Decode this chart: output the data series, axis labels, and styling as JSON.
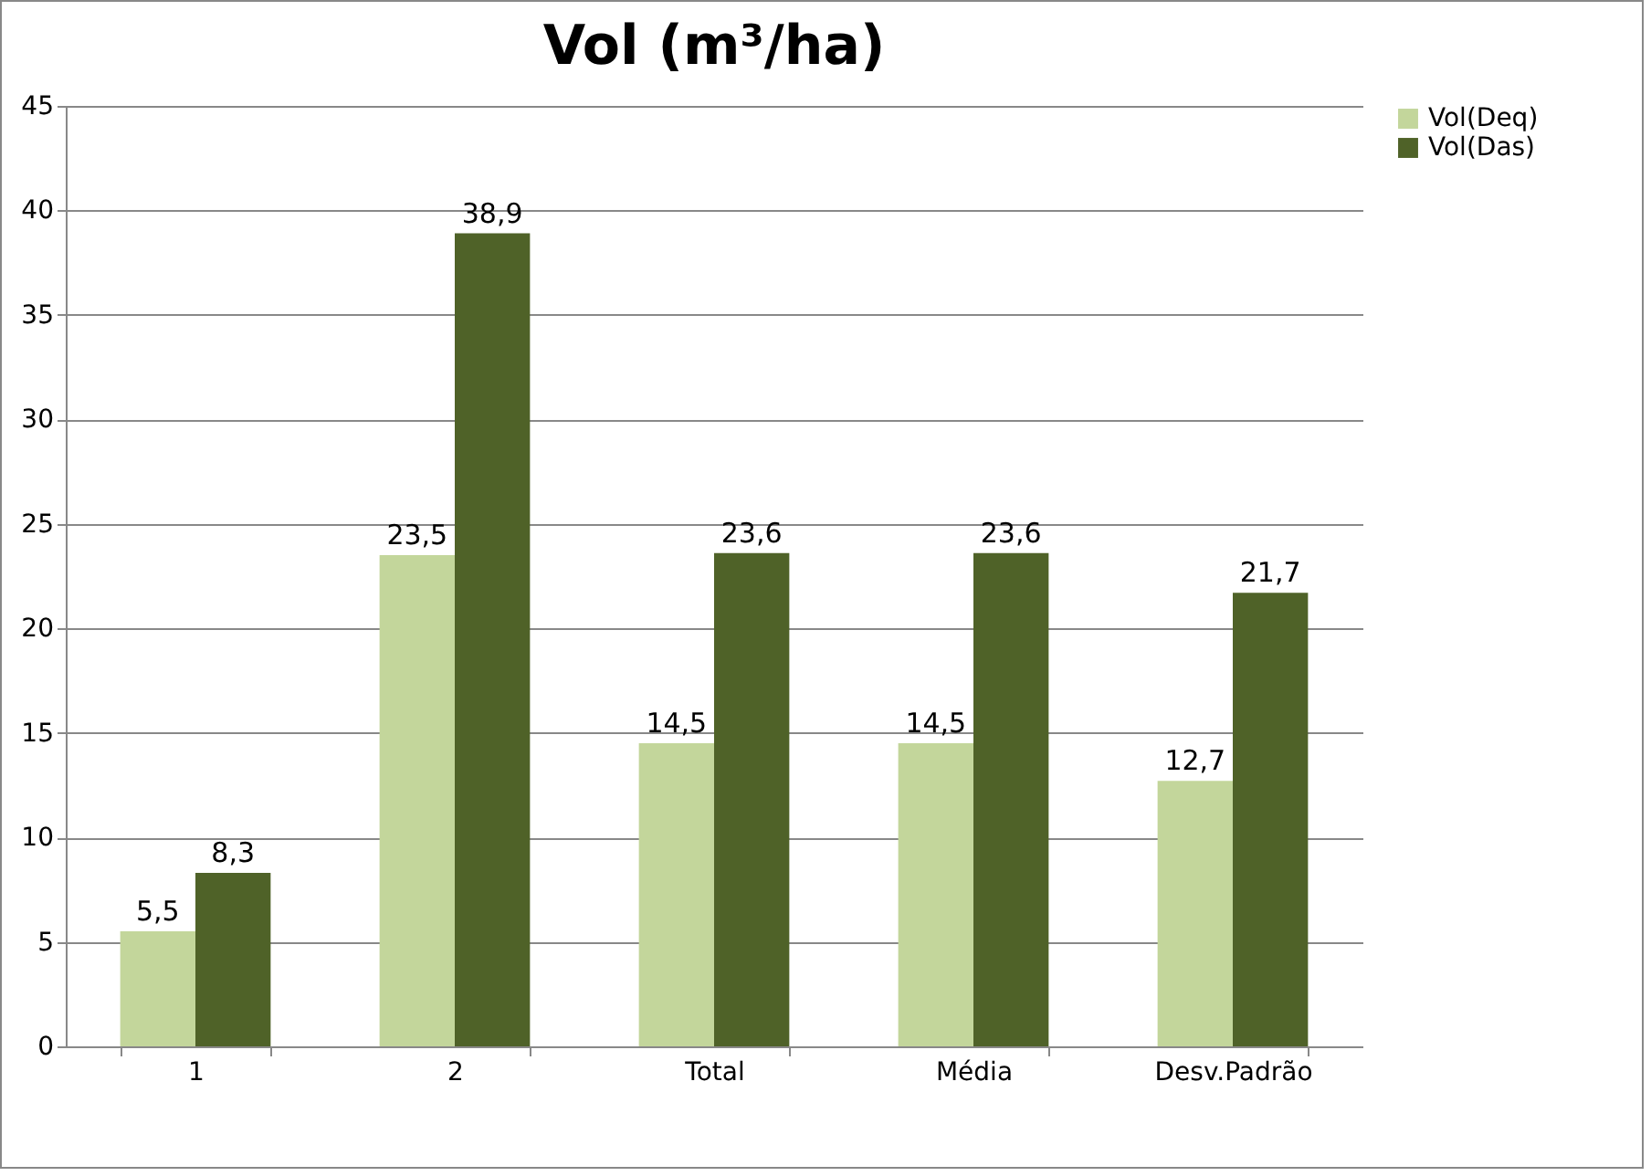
{
  "chart_data": {
    "type": "bar",
    "title": "Vol (m³/ha)",
    "categories": [
      "1",
      "2",
      "Total",
      "Média",
      "Desv.Padrão"
    ],
    "series": [
      {
        "name": "Vol(Deq)",
        "color": "#c3d69b",
        "values": [
          5.5,
          23.5,
          14.5,
          14.5,
          12.7
        ],
        "value_labels": [
          "5,5",
          "23,5",
          "14,5",
          "14,5",
          "12,7"
        ]
      },
      {
        "name": "Vol(Das)",
        "color": "#4f6228",
        "values": [
          8.3,
          38.9,
          23.6,
          23.6,
          21.7
        ],
        "value_labels": [
          "8,3",
          "38,9",
          "23,6",
          "23,6",
          "21,7"
        ]
      }
    ],
    "ylim": [
      0,
      45
    ],
    "yticks": [
      0,
      5,
      10,
      15,
      20,
      25,
      30,
      35,
      40,
      45
    ],
    "grid": "y",
    "legend": "right"
  }
}
